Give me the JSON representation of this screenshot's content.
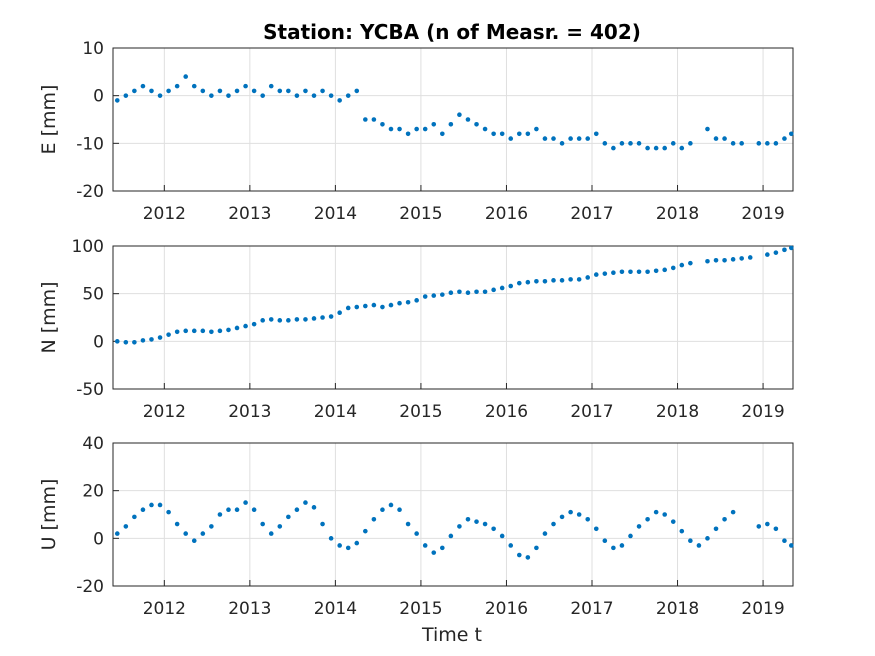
{
  "chart_data": {
    "type": "scatter",
    "title": "Station: YCBA (n of Measr. = 402)",
    "xlabel": "Time t",
    "xlim": [
      2011.4,
      2019.35
    ],
    "x_ticks": [
      "2012",
      "2013",
      "2014",
      "2015",
      "2016",
      "2017",
      "2018",
      "2019"
    ],
    "grid": true,
    "marker_color": "#0072bd",
    "panels": [
      {
        "ylabel": "E [mm]",
        "ylim": [
          -20,
          10
        ],
        "y_ticks": [
          "10",
          "0",
          "-10",
          "-20"
        ],
        "series_x": [
          2011.45,
          2011.55,
          2011.65,
          2011.75,
          2011.85,
          2011.95,
          2012.05,
          2012.15,
          2012.25,
          2012.35,
          2012.45,
          2012.55,
          2012.65,
          2012.75,
          2012.85,
          2012.95,
          2013.05,
          2013.15,
          2013.25,
          2013.35,
          2013.45,
          2013.55,
          2013.65,
          2013.75,
          2013.85,
          2013.95,
          2014.05,
          2014.15,
          2014.25,
          2014.35,
          2014.45,
          2014.55,
          2014.65,
          2014.75,
          2014.85,
          2014.95,
          2015.05,
          2015.15,
          2015.25,
          2015.35,
          2015.45,
          2015.55,
          2015.65,
          2015.75,
          2015.85,
          2015.95,
          2016.05,
          2016.15,
          2016.25,
          2016.35,
          2016.45,
          2016.55,
          2016.65,
          2016.75,
          2016.85,
          2016.95,
          2017.05,
          2017.15,
          2017.25,
          2017.35,
          2017.45,
          2017.55,
          2017.65,
          2017.75,
          2017.85,
          2017.95,
          2018.05,
          2018.15,
          2018.25,
          2018.35,
          2018.45,
          2018.55,
          2018.65,
          2018.75,
          2018.85,
          2018.95,
          2019.05,
          2019.15,
          2019.25,
          2019.33
        ],
        "series_y": [
          -1,
          0,
          1,
          2,
          1,
          0,
          1,
          2,
          4,
          2,
          1,
          0,
          1,
          0,
          1,
          2,
          1,
          0,
          2,
          1,
          1,
          0,
          1,
          0,
          1,
          0,
          -1,
          0,
          1,
          -5,
          -5,
          -6,
          -7,
          -7,
          -8,
          -7,
          -7,
          -6,
          -8,
          -6,
          -4,
          -5,
          -6,
          -7,
          -8,
          -8,
          -9,
          -8,
          -8,
          -7,
          -9,
          -9,
          -10,
          -9,
          -9,
          -9,
          -8,
          -10,
          -11,
          -10,
          -10,
          -10,
          -11,
          -11,
          -11,
          -10,
          -11,
          -10,
          null,
          -7,
          -9,
          -9,
          -10,
          -10,
          null,
          -10,
          -10,
          -10,
          -9,
          -8
        ]
      },
      {
        "ylabel": "N [mm]",
        "ylim": [
          -50,
          100
        ],
        "y_ticks": [
          "100",
          "50",
          "0",
          "-50"
        ],
        "series_x": [
          2011.45,
          2011.55,
          2011.65,
          2011.75,
          2011.85,
          2011.95,
          2012.05,
          2012.15,
          2012.25,
          2012.35,
          2012.45,
          2012.55,
          2012.65,
          2012.75,
          2012.85,
          2012.95,
          2013.05,
          2013.15,
          2013.25,
          2013.35,
          2013.45,
          2013.55,
          2013.65,
          2013.75,
          2013.85,
          2013.95,
          2014.05,
          2014.15,
          2014.25,
          2014.35,
          2014.45,
          2014.55,
          2014.65,
          2014.75,
          2014.85,
          2014.95,
          2015.05,
          2015.15,
          2015.25,
          2015.35,
          2015.45,
          2015.55,
          2015.65,
          2015.75,
          2015.85,
          2015.95,
          2016.05,
          2016.15,
          2016.25,
          2016.35,
          2016.45,
          2016.55,
          2016.65,
          2016.75,
          2016.85,
          2016.95,
          2017.05,
          2017.15,
          2017.25,
          2017.35,
          2017.45,
          2017.55,
          2017.65,
          2017.75,
          2017.85,
          2017.95,
          2018.05,
          2018.15,
          2018.25,
          2018.35,
          2018.45,
          2018.55,
          2018.65,
          2018.75,
          2018.85,
          2018.95,
          2019.05,
          2019.15,
          2019.25,
          2019.33
        ],
        "series_y": [
          0,
          -1,
          -1,
          1,
          2,
          4,
          7,
          10,
          11,
          11,
          11,
          10,
          11,
          12,
          14,
          16,
          18,
          22,
          23,
          22,
          22,
          23,
          23,
          24,
          25,
          26,
          30,
          35,
          36,
          37,
          38,
          36,
          38,
          40,
          41,
          43,
          47,
          48,
          49,
          51,
          52,
          51,
          52,
          52,
          54,
          56,
          58,
          61,
          62,
          63,
          63,
          64,
          64,
          65,
          65,
          67,
          70,
          71,
          72,
          73,
          73,
          73,
          73,
          74,
          75,
          77,
          80,
          82,
          null,
          84,
          85,
          85,
          86,
          87,
          88,
          null,
          91,
          93,
          96,
          98
        ]
      },
      {
        "ylabel": "U [mm]",
        "ylim": [
          -20,
          40
        ],
        "y_ticks": [
          "40",
          "20",
          "0",
          "-20"
        ],
        "series_x": [
          2011.45,
          2011.55,
          2011.65,
          2011.75,
          2011.85,
          2011.95,
          2012.05,
          2012.15,
          2012.25,
          2012.35,
          2012.45,
          2012.55,
          2012.65,
          2012.75,
          2012.85,
          2012.95,
          2013.05,
          2013.15,
          2013.25,
          2013.35,
          2013.45,
          2013.55,
          2013.65,
          2013.75,
          2013.85,
          2013.95,
          2014.05,
          2014.15,
          2014.25,
          2014.35,
          2014.45,
          2014.55,
          2014.65,
          2014.75,
          2014.85,
          2014.95,
          2015.05,
          2015.15,
          2015.25,
          2015.35,
          2015.45,
          2015.55,
          2015.65,
          2015.75,
          2015.85,
          2015.95,
          2016.05,
          2016.15,
          2016.25,
          2016.35,
          2016.45,
          2016.55,
          2016.65,
          2016.75,
          2016.85,
          2016.95,
          2017.05,
          2017.15,
          2017.25,
          2017.35,
          2017.45,
          2017.55,
          2017.65,
          2017.75,
          2017.85,
          2017.95,
          2018.05,
          2018.15,
          2018.25,
          2018.35,
          2018.45,
          2018.55,
          2018.65,
          2018.75,
          2018.85,
          2018.95,
          2019.05,
          2019.15,
          2019.25,
          2019.33
        ],
        "series_y": [
          2,
          5,
          9,
          12,
          14,
          14,
          11,
          6,
          2,
          -1,
          2,
          5,
          10,
          12,
          12,
          15,
          12,
          6,
          2,
          5,
          9,
          12,
          15,
          13,
          6,
          0,
          -3,
          -4,
          -2,
          3,
          8,
          12,
          14,
          12,
          6,
          2,
          -3,
          -6,
          -4,
          1,
          5,
          8,
          7,
          6,
          4,
          1,
          -3,
          -7,
          -8,
          -4,
          2,
          6,
          9,
          11,
          10,
          8,
          4,
          -1,
          -4,
          -3,
          1,
          5,
          8,
          11,
          10,
          7,
          3,
          -1,
          -3,
          0,
          4,
          8,
          11,
          null,
          null,
          5,
          6,
          4,
          -1,
          -3
        ]
      }
    ]
  }
}
